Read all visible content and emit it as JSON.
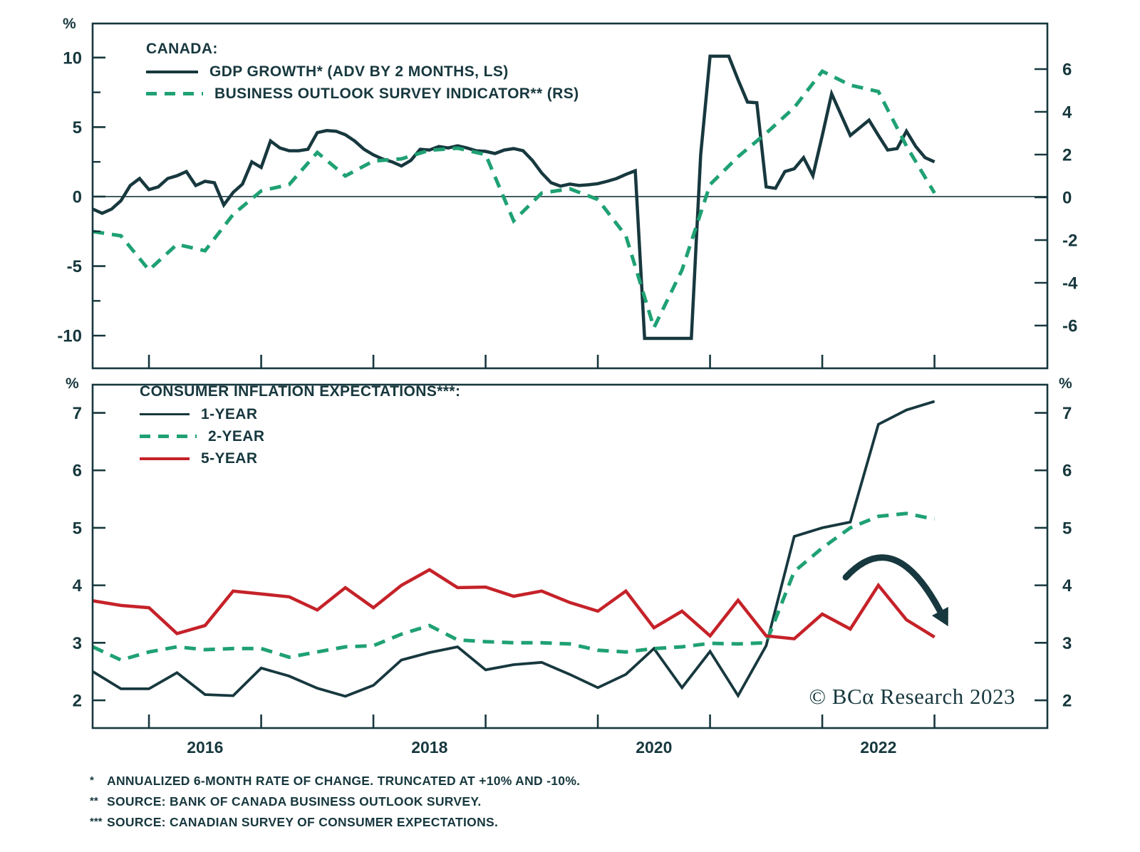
{
  "pct_symbol": "%",
  "colors": {
    "dark": "#17383E",
    "green": "#1FA173",
    "red": "#C52229",
    "background": "#FFFFFF"
  },
  "watermark": "© BCα Research 2023",
  "top_legend": {
    "title": "CANADA:",
    "series": [
      {
        "label": "GDP GROWTH* (ADV BY 2 MONTHS, LS)",
        "style": "solid",
        "color": "dark"
      },
      {
        "label": "BUSINESS OUTLOOK SURVEY INDICATOR** (RS)",
        "style": "dashed",
        "color": "green"
      }
    ]
  },
  "bottom_legend": {
    "title": "CONSUMER INFLATION EXPECTATIONS***:",
    "series": [
      {
        "label": "1-YEAR",
        "style": "solid",
        "color": "dark"
      },
      {
        "label": "2-YEAR",
        "style": "dashed",
        "color": "green"
      },
      {
        "label": "5-YEAR",
        "style": "solid",
        "color": "red"
      }
    ]
  },
  "footnotes": [
    {
      "marker": "*",
      "text": "ANNUALIZED 6-MONTH RATE OF CHANGE. TRUNCATED AT +10% AND -10%."
    },
    {
      "marker": "**",
      "text": "SOURCE: BANK OF CANADA BUSINESS OUTLOOK SURVEY."
    },
    {
      "marker": "***",
      "text": "SOURCE: CANADIAN SURVEY OF CONSUMER EXPECTATIONS."
    }
  ],
  "chart_data": [
    {
      "type": "line",
      "panel": "top",
      "title": "CANADA:",
      "x_unit": "decimal_year",
      "xlim": [
        2015.498,
        2024.006
      ],
      "x_axis": {
        "tick_years": [
          2016,
          2017,
          2018,
          2019,
          2020,
          2021,
          2022,
          2023
        ],
        "label_years": []
      },
      "y_left": {
        "unit": "%",
        "ticks": [
          10,
          5,
          0,
          -5,
          -10
        ],
        "minor_ticks": [
          7.5,
          2.5,
          -2.5,
          -7.5
        ],
        "lim": [
          -12.35,
          12.45
        ]
      },
      "y_right": {
        "ticks": [
          6,
          4,
          2,
          0,
          -2,
          -4,
          -6
        ],
        "lim": [
          -8.0,
          8.133
        ]
      },
      "zero_line": true,
      "grid": false,
      "series": [
        {
          "name": "GDP GROWTH* (ADV BY 2 MONTHS, LS)",
          "axis": "left",
          "style": "solid",
          "color": "dark",
          "start_year": 2015,
          "start_month": 7,
          "freq": "monthly",
          "values": [
            -0.9,
            -1.2,
            -0.9,
            -0.3,
            0.8,
            1.3,
            0.5,
            0.7,
            1.3,
            1.5,
            1.8,
            0.8,
            1.1,
            1.0,
            -0.6,
            0.3,
            0.9,
            2.5,
            2.1,
            4.0,
            3.5,
            3.3,
            3.3,
            3.4,
            4.6,
            4.75,
            4.7,
            4.45,
            4.0,
            3.4,
            3.0,
            2.7,
            2.5,
            2.2,
            2.6,
            3.4,
            3.35,
            3.6,
            3.5,
            3.65,
            3.5,
            3.3,
            3.25,
            3.1,
            3.35,
            3.45,
            3.3,
            2.6,
            1.7,
            1.0,
            0.75,
            0.9,
            0.8,
            0.85,
            0.93,
            1.1,
            1.3,
            1.6,
            1.86,
            -10.2,
            -10.2,
            -10.2,
            -10.2,
            -10.2,
            -10.2,
            3.0,
            10.1,
            10.1,
            10.1,
            8.4,
            6.8,
            6.75,
            0.7,
            0.6,
            1.8,
            2.0,
            2.8,
            1.5,
            4.4,
            7.4,
            5.9,
            4.4,
            4.95,
            5.5,
            4.4,
            3.35,
            3.45,
            4.7,
            3.6,
            2.8,
            2.5
          ]
        },
        {
          "name": "BUSINESS OUTLOOK SURVEY INDICATOR** (RS)",
          "axis": "right",
          "style": "dashed",
          "color": "green",
          "start_year": 2015,
          "start_month": 7,
          "freq": "quarterly",
          "values": [
            -1.6,
            -1.8,
            -3.4,
            -2.2,
            -2.5,
            -0.8,
            0.3,
            0.6,
            2.1,
            1.0,
            1.7,
            1.8,
            2.2,
            2.3,
            2.0,
            -1.1,
            0.2,
            0.4,
            -0.1,
            -1.8,
            -6.1,
            -3.4,
            0.6,
            1.9,
            3.0,
            4.2,
            5.9,
            5.25,
            4.95,
            2.4,
            0.2
          ]
        }
      ]
    },
    {
      "type": "line",
      "panel": "bottom",
      "title": "CONSUMER INFLATION EXPECTATIONS***:",
      "x_unit": "decimal_year",
      "xlim": [
        2015.498,
        2024.006
      ],
      "x_axis": {
        "tick_years": [
          2016,
          2017,
          2018,
          2019,
          2020,
          2021,
          2022,
          2023
        ],
        "label_years": [
          2016,
          2018,
          2020,
          2022
        ]
      },
      "y_left": {
        "unit": "%",
        "ticks": [
          7,
          6,
          5,
          4,
          3,
          2
        ],
        "minor_ticks": [],
        "lim": [
          1.517,
          7.49
        ]
      },
      "y_right": {
        "unit": "%",
        "ticks": [
          7,
          6,
          5,
          4,
          3,
          2
        ],
        "lim": [
          1.517,
          7.49
        ]
      },
      "zero_line": false,
      "grid": false,
      "series": [
        {
          "name": "1-YEAR",
          "axis": "left",
          "style": "solid",
          "color": "dark",
          "start_year": 2015,
          "start_month": 7,
          "freq": "quarterly",
          "values": [
            2.5,
            2.2,
            2.2,
            2.48,
            2.1,
            2.08,
            2.56,
            2.42,
            2.21,
            2.07,
            2.26,
            2.7,
            2.83,
            2.93,
            2.53,
            2.62,
            2.66,
            2.45,
            2.22,
            2.45,
            2.9,
            2.22,
            2.85,
            2.08,
            2.95,
            4.85,
            5.0,
            5.1,
            6.8,
            7.05,
            7.2
          ]
        },
        {
          "name": "2-YEAR",
          "axis": "left",
          "style": "dashed",
          "color": "green",
          "start_year": 2015,
          "start_month": 7,
          "freq": "quarterly",
          "values": [
            2.93,
            2.7,
            2.84,
            2.93,
            2.88,
            2.9,
            2.9,
            2.75,
            2.84,
            2.93,
            2.95,
            3.15,
            3.3,
            3.05,
            3.02,
            3.0,
            3.0,
            2.98,
            2.87,
            2.84,
            2.9,
            2.93,
            2.99,
            2.98,
            3.0,
            4.24,
            4.65,
            5.0,
            5.2,
            5.25,
            5.15
          ]
        },
        {
          "name": "5-YEAR",
          "axis": "left",
          "style": "solid",
          "color": "red",
          "start_year": 2015,
          "start_month": 7,
          "freq": "quarterly",
          "values": [
            3.73,
            3.65,
            3.61,
            3.16,
            3.3,
            3.9,
            3.85,
            3.8,
            3.57,
            3.96,
            3.61,
            4.0,
            4.27,
            3.96,
            3.97,
            3.81,
            3.9,
            3.7,
            3.55,
            3.9,
            3.26,
            3.55,
            3.12,
            3.74,
            3.12,
            3.07,
            3.5,
            3.24,
            4.0,
            3.4,
            3.1
          ]
        }
      ],
      "annotation": {
        "type": "trend-arrow",
        "direction": "down-right",
        "start": [
          2022.21,
          4.14
        ],
        "control": [
          2022.64,
          5.05
        ],
        "end": [
          2023.05,
          3.55
        ]
      }
    }
  ]
}
